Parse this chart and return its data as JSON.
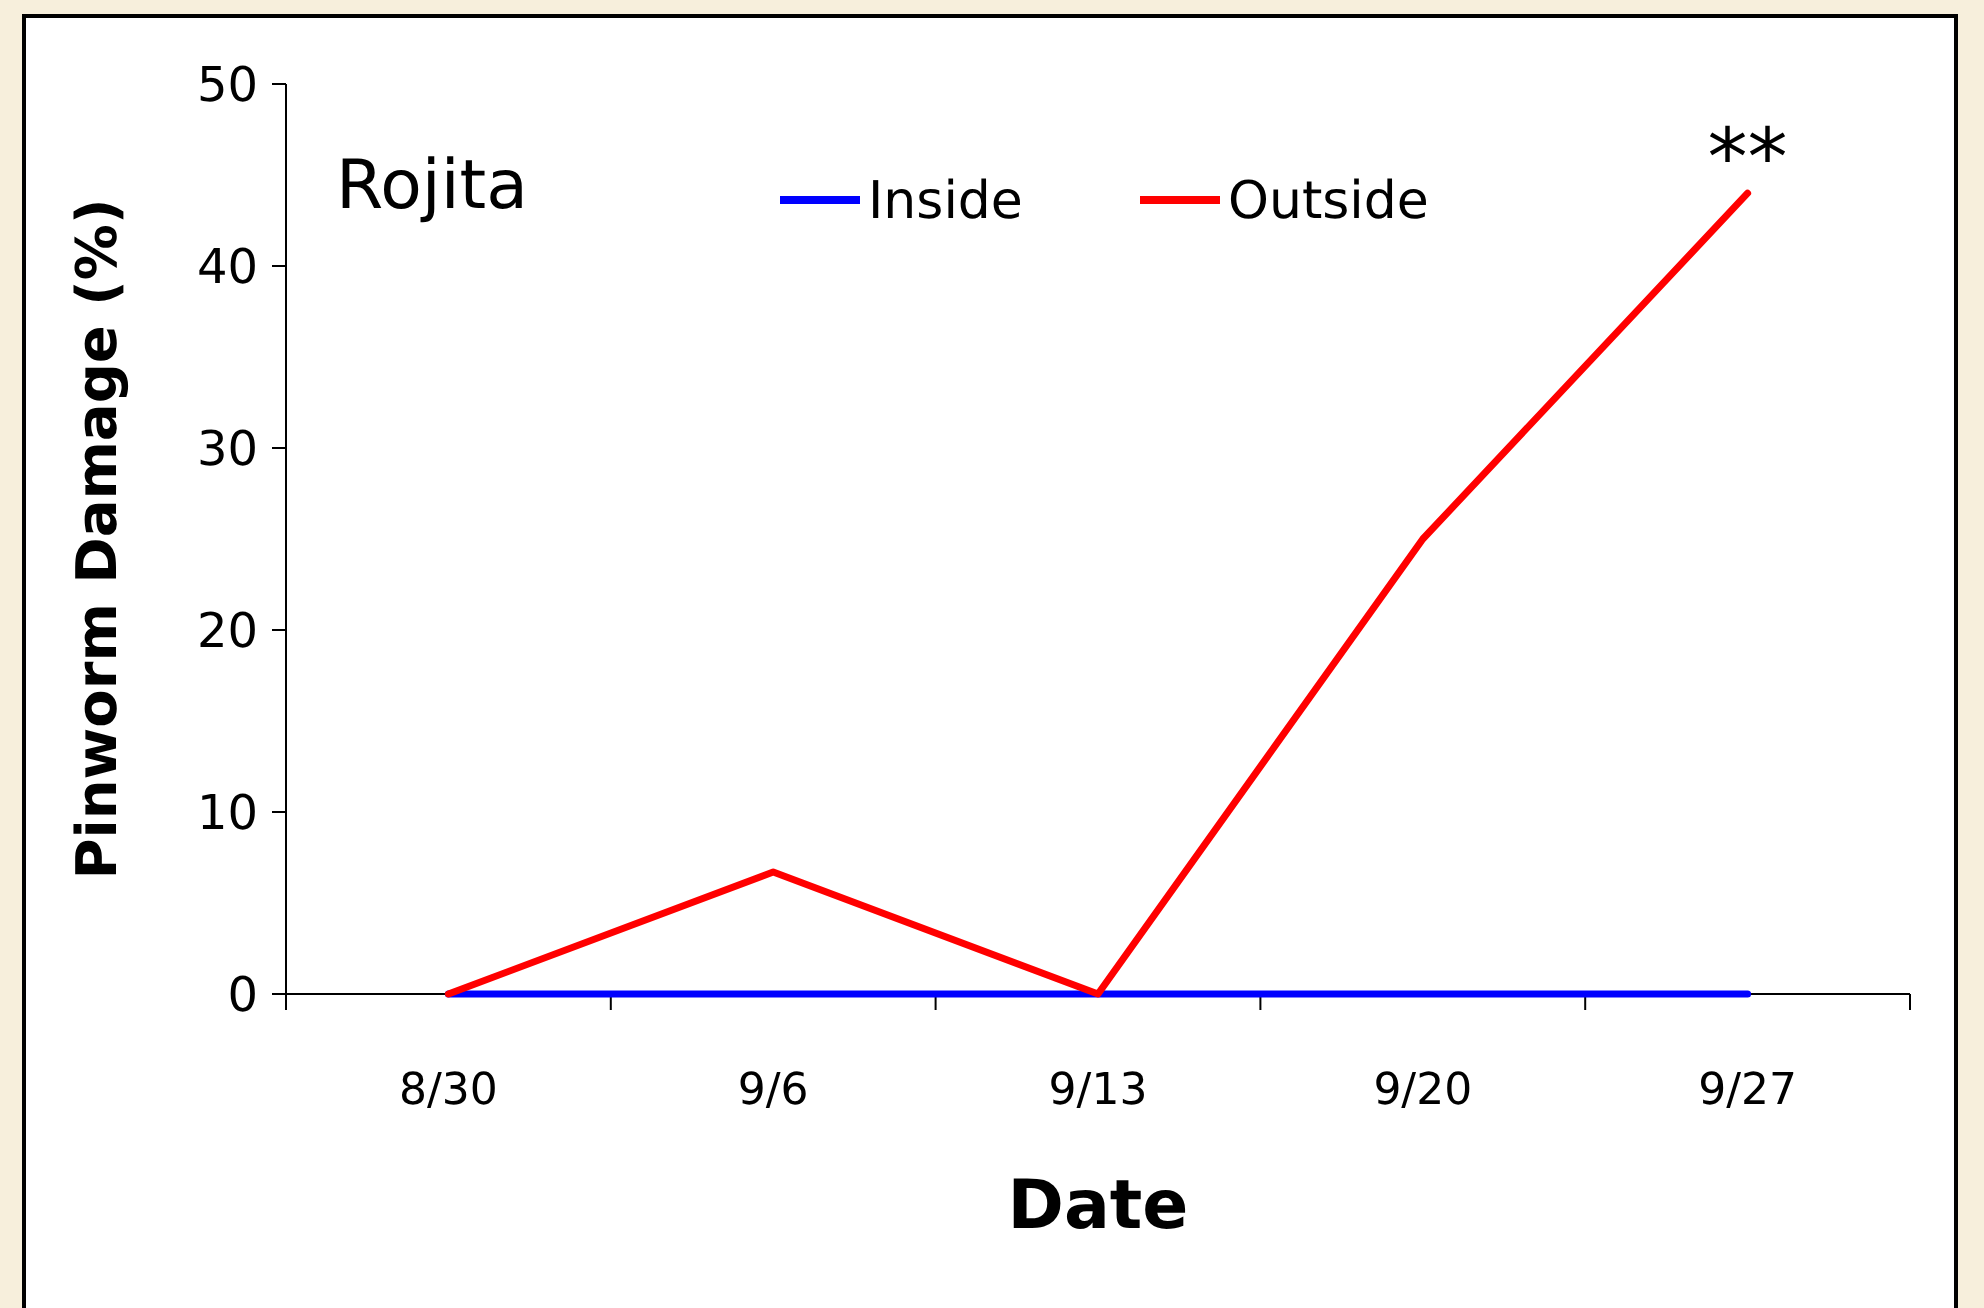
{
  "chart_data": {
    "type": "line",
    "xlabel": "Date",
    "ylabel": "Pinworm Damage (%)",
    "categories": [
      "8/30",
      "9/6",
      "9/13",
      "9/20",
      "9/27"
    ],
    "series": [
      {
        "name": "Inside",
        "color": "#0000ff",
        "values": [
          0,
          0,
          0,
          0,
          0
        ]
      },
      {
        "name": "Outside",
        "color": "#ff0000",
        "values": [
          0,
          6.7,
          0,
          25,
          44
        ]
      }
    ],
    "ylim": [
      0,
      50
    ],
    "yticks": [
      0,
      10,
      20,
      30,
      40,
      50
    ],
    "grid": false,
    "legend": "top",
    "marker": "none",
    "line_style": "solid",
    "annotations": [
      "Rojita",
      {
        "text": "**",
        "x": "9/27",
        "y": 44
      }
    ]
  }
}
